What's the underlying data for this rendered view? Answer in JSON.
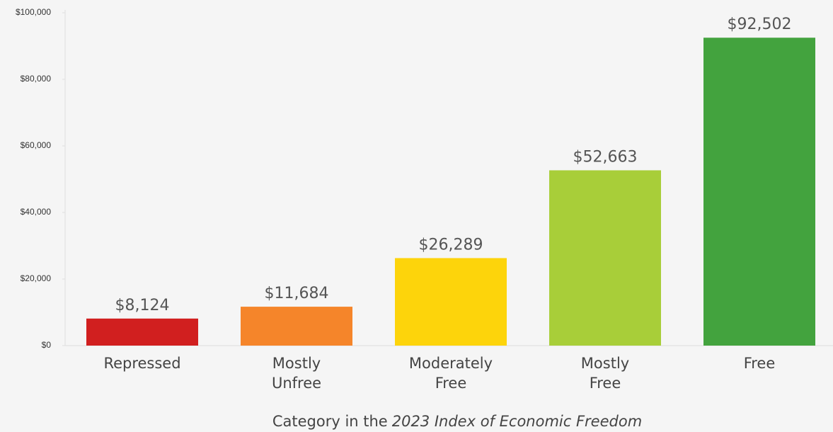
{
  "chart_data": {
    "type": "bar",
    "categories": [
      "Repressed",
      "Mostly Unfree",
      "Moderately Free",
      "Mostly Free",
      "Free"
    ],
    "values": [
      8124,
      11684,
      26289,
      52663,
      92502
    ],
    "value_labels": [
      "$8,124",
      "$11,684",
      "$26,289",
      "$52,663",
      "$92,502"
    ],
    "colors": [
      "#d11f1f",
      "#f5852a",
      "#fdd40b",
      "#a8ce39",
      "#43a33e"
    ],
    "ylim": [
      0,
      100000
    ],
    "yticks": [
      {
        "value": 0,
        "label": "$0"
      },
      {
        "value": 20000,
        "label": "$20,000"
      },
      {
        "value": 40000,
        "label": "$40,000"
      },
      {
        "value": 60000,
        "label": "$60,000"
      },
      {
        "value": 80000,
        "label": "$80,000"
      },
      {
        "value": 100000,
        "label": "$100,000"
      }
    ],
    "xlabel": {
      "prefix": "Category in the",
      "emphasis": "2023 Index of Economic Freedom"
    },
    "grid": false
  }
}
